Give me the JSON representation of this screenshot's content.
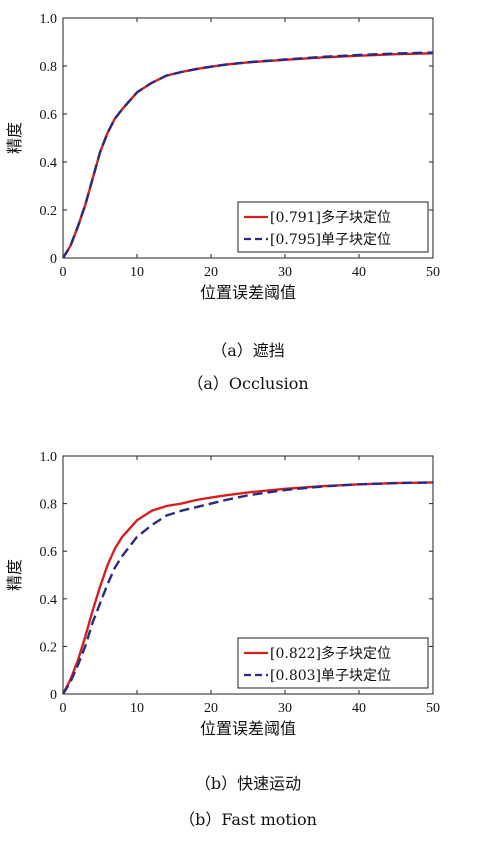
{
  "chart_data": [
    {
      "type": "line",
      "xlabel": "位置误差阈值",
      "ylabel": "精度",
      "xlim": [
        0,
        50
      ],
      "ylim": [
        0,
        1
      ],
      "xticks": [
        "0",
        "10",
        "20",
        "30",
        "40",
        "50"
      ],
      "yticks": [
        "0",
        "0.2",
        "0.4",
        "0.6",
        "0.8",
        "1.0"
      ],
      "legend_position": "bottom-right",
      "x": [
        0,
        1,
        2,
        3,
        4,
        5,
        6,
        7,
        8,
        10,
        12,
        14,
        16,
        18,
        20,
        22,
        25,
        30,
        35,
        40,
        45,
        50
      ],
      "series": [
        {
          "name": "[0.791]多子块定位",
          "color": "#d42020",
          "style": "solid",
          "values": [
            0.0,
            0.05,
            0.13,
            0.22,
            0.33,
            0.44,
            0.52,
            0.58,
            0.62,
            0.69,
            0.73,
            0.76,
            0.775,
            0.787,
            0.797,
            0.806,
            0.815,
            0.826,
            0.836,
            0.843,
            0.849,
            0.853
          ]
        },
        {
          "name": "[0.795]单子块定位",
          "color": "#2a2a80",
          "style": "dashed",
          "values": [
            0.0,
            0.05,
            0.13,
            0.22,
            0.33,
            0.44,
            0.52,
            0.58,
            0.62,
            0.69,
            0.73,
            0.76,
            0.775,
            0.787,
            0.797,
            0.806,
            0.816,
            0.827,
            0.838,
            0.846,
            0.852,
            0.856
          ]
        }
      ],
      "caption_cn": "（a）遮挡",
      "caption_en": "（a）Occlusion"
    },
    {
      "type": "line",
      "xlabel": "位置误差阈值",
      "ylabel": "精度",
      "xlim": [
        0,
        50
      ],
      "ylim": [
        0,
        1
      ],
      "xticks": [
        "0",
        "10",
        "20",
        "30",
        "40",
        "50"
      ],
      "yticks": [
        "0",
        "0.2",
        "0.4",
        "0.6",
        "0.8",
        "1.0"
      ],
      "legend_position": "bottom-right",
      "x": [
        0,
        1,
        2,
        3,
        4,
        5,
        6,
        7,
        8,
        10,
        12,
        14,
        16,
        18,
        20,
        22,
        25,
        30,
        35,
        40,
        45,
        50
      ],
      "series": [
        {
          "name": "[0.822]多子块定位",
          "color": "#d42020",
          "style": "solid",
          "values": [
            0.0,
            0.06,
            0.14,
            0.24,
            0.35,
            0.45,
            0.54,
            0.61,
            0.66,
            0.73,
            0.77,
            0.79,
            0.8,
            0.815,
            0.825,
            0.835,
            0.847,
            0.862,
            0.873,
            0.881,
            0.886,
            0.889
          ]
        },
        {
          "name": "[0.803]单子块定位",
          "color": "#2a2a80",
          "style": "dashed",
          "values": [
            0.0,
            0.05,
            0.12,
            0.2,
            0.3,
            0.38,
            0.46,
            0.53,
            0.58,
            0.66,
            0.71,
            0.75,
            0.77,
            0.785,
            0.8,
            0.815,
            0.835,
            0.857,
            0.872,
            0.881,
            0.886,
            0.889
          ]
        }
      ],
      "caption_cn": "（b）快速运动",
      "caption_en": "（b）Fast motion"
    }
  ]
}
